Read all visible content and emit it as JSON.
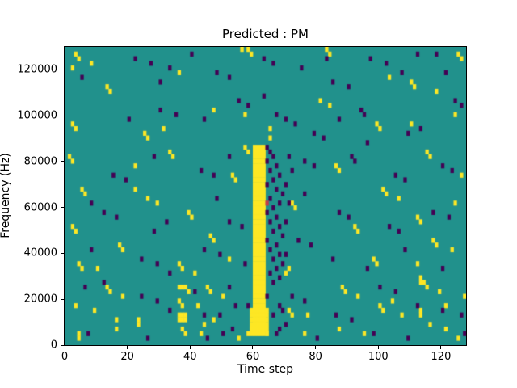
{
  "chart_data": {
    "type": "heatmap",
    "title": "Predicted : PM",
    "xlabel": "Time step",
    "ylabel": "Frequency (Hz)",
    "xlim": [
      0,
      128
    ],
    "ylim": [
      0,
      130000
    ],
    "x_ticks": [
      0,
      20,
      40,
      60,
      80,
      100,
      120
    ],
    "y_ticks": [
      0,
      20000,
      40000,
      60000,
      80000,
      100000,
      120000
    ],
    "grid": {
      "cols": 128,
      "rows": 64,
      "hz_per_row": 2031.25
    },
    "legend": "none",
    "colors": {
      "background": "#21918c",
      "yellow": "#fde725",
      "purple": "#440154",
      "accent_red": "#c23a4c"
    },
    "bands": [
      {
        "color": "yellow",
        "col_start": 60,
        "col_end": 63,
        "row_start": 3,
        "row_end": 42
      },
      {
        "color": "yellow",
        "col_start": 59,
        "col_end": 64,
        "row_start": 2,
        "row_end": 7
      }
    ],
    "yellow_cells": [
      [
        3,
        62
      ],
      [
        4,
        61
      ],
      [
        8,
        60
      ],
      [
        2,
        59
      ],
      [
        36,
        58
      ],
      [
        58,
        63
      ],
      [
        59,
        62
      ],
      [
        83,
        63
      ],
      [
        84,
        62
      ],
      [
        110,
        56
      ],
      [
        111,
        55
      ],
      [
        125,
        62
      ],
      [
        126,
        61
      ],
      [
        13,
        55
      ],
      [
        14,
        54
      ],
      [
        118,
        54
      ],
      [
        103,
        57
      ],
      [
        56,
        63
      ],
      [
        2,
        47
      ],
      [
        3,
        46
      ],
      [
        25,
        45
      ],
      [
        26,
        44
      ],
      [
        31,
        46
      ],
      [
        57,
        49
      ],
      [
        65,
        46
      ],
      [
        81,
        52
      ],
      [
        84,
        51
      ],
      [
        99,
        47
      ],
      [
        100,
        46
      ],
      [
        124,
        49
      ],
      [
        110,
        47
      ],
      [
        47,
        50
      ],
      [
        1,
        40
      ],
      [
        2,
        39
      ],
      [
        33,
        41
      ],
      [
        34,
        40
      ],
      [
        53,
        36
      ],
      [
        54,
        35
      ],
      [
        57,
        42
      ],
      [
        58,
        41
      ],
      [
        86,
        38
      ],
      [
        87,
        37
      ],
      [
        115,
        41
      ],
      [
        116,
        40
      ],
      [
        126,
        36
      ],
      [
        22,
        38
      ],
      [
        65,
        44
      ],
      [
        5,
        33
      ],
      [
        6,
        32
      ],
      [
        22,
        33
      ],
      [
        26,
        31
      ],
      [
        29,
        30
      ],
      [
        39,
        28
      ],
      [
        40,
        27
      ],
      [
        72,
        30
      ],
      [
        73,
        29
      ],
      [
        101,
        33
      ],
      [
        102,
        32
      ],
      [
        106,
        31
      ],
      [
        112,
        27
      ],
      [
        113,
        26
      ],
      [
        2,
        25
      ],
      [
        3,
        24
      ],
      [
        92,
        25
      ],
      [
        93,
        24
      ],
      [
        124,
        30
      ],
      [
        4,
        17
      ],
      [
        5,
        16
      ],
      [
        17,
        21
      ],
      [
        18,
        20
      ],
      [
        36,
        17
      ],
      [
        37,
        16
      ],
      [
        41,
        15
      ],
      [
        46,
        23
      ],
      [
        47,
        22
      ],
      [
        70,
        15
      ],
      [
        71,
        16
      ],
      [
        98,
        18
      ],
      [
        99,
        17
      ],
      [
        117,
        22
      ],
      [
        118,
        21
      ],
      [
        123,
        20
      ],
      [
        112,
        17
      ],
      [
        52,
        18
      ],
      [
        10,
        16
      ],
      [
        3,
        8
      ],
      [
        9,
        7
      ],
      [
        13,
        12
      ],
      [
        14,
        11
      ],
      [
        18,
        10
      ],
      [
        36,
        9
      ],
      [
        37,
        8
      ],
      [
        38,
        12
      ],
      [
        39,
        11
      ],
      [
        42,
        8
      ],
      [
        45,
        12
      ],
      [
        46,
        11
      ],
      [
        50,
        10
      ],
      [
        71,
        7
      ],
      [
        72,
        6
      ],
      [
        77,
        6
      ],
      [
        88,
        12
      ],
      [
        89,
        11
      ],
      [
        93,
        10
      ],
      [
        100,
        8
      ],
      [
        101,
        7
      ],
      [
        107,
        6
      ],
      [
        114,
        13
      ],
      [
        115,
        12
      ],
      [
        119,
        11
      ],
      [
        127,
        10
      ],
      [
        16,
        5
      ],
      [
        23,
        5
      ],
      [
        47,
        5
      ],
      [
        104,
        9
      ],
      [
        113,
        6
      ],
      [
        113,
        7
      ],
      [
        113,
        13
      ],
      [
        113,
        14
      ],
      [
        121,
        8
      ],
      [
        4,
        1
      ],
      [
        4,
        2
      ],
      [
        16,
        3
      ],
      [
        23,
        4
      ],
      [
        37,
        3
      ],
      [
        38,
        2
      ],
      [
        43,
        2
      ],
      [
        55,
        1
      ],
      [
        58,
        2
      ],
      [
        59,
        3
      ],
      [
        64,
        2
      ],
      [
        87,
        3
      ],
      [
        95,
        2
      ],
      [
        116,
        4
      ],
      [
        121,
        3
      ],
      [
        125,
        1
      ],
      [
        44,
        4
      ],
      [
        76,
        2
      ],
      [
        36,
        5
      ],
      [
        36,
        6
      ],
      [
        37,
        5
      ],
      [
        37,
        6
      ],
      [
        36,
        12
      ],
      [
        37,
        12
      ],
      [
        38,
        5
      ],
      [
        38,
        6
      ]
    ],
    "purple_cells": [
      [
        22,
        61
      ],
      [
        27,
        60
      ],
      [
        33,
        59
      ],
      [
        40,
        62
      ],
      [
        48,
        58
      ],
      [
        52,
        57
      ],
      [
        63,
        61
      ],
      [
        66,
        60
      ],
      [
        83,
        61
      ],
      [
        85,
        56
      ],
      [
        90,
        55
      ],
      [
        97,
        61
      ],
      [
        102,
        60
      ],
      [
        107,
        58
      ],
      [
        118,
        62
      ],
      [
        121,
        58
      ],
      [
        30,
        56
      ],
      [
        75,
        59
      ],
      [
        112,
        62
      ],
      [
        5,
        57
      ],
      [
        30,
        50
      ],
      [
        35,
        49
      ],
      [
        44,
        48
      ],
      [
        55,
        52
      ],
      [
        58,
        51
      ],
      [
        67,
        49
      ],
      [
        70,
        48
      ],
      [
        73,
        47
      ],
      [
        79,
        45
      ],
      [
        82,
        44
      ],
      [
        94,
        50
      ],
      [
        95,
        49
      ],
      [
        109,
        45
      ],
      [
        113,
        46
      ],
      [
        124,
        52
      ],
      [
        126,
        51
      ],
      [
        87,
        48
      ],
      [
        20,
        48
      ],
      [
        63,
        53
      ],
      [
        15,
        36
      ],
      [
        19,
        35
      ],
      [
        43,
        37
      ],
      [
        47,
        36
      ],
      [
        76,
        39
      ],
      [
        79,
        38
      ],
      [
        91,
        40
      ],
      [
        92,
        39
      ],
      [
        105,
        36
      ],
      [
        108,
        35
      ],
      [
        120,
        38
      ],
      [
        123,
        37
      ],
      [
        28,
        40
      ],
      [
        96,
        43
      ],
      [
        52,
        40
      ],
      [
        64,
        42
      ],
      [
        65,
        41
      ],
      [
        66,
        40
      ],
      [
        64,
        39
      ],
      [
        67,
        38
      ],
      [
        65,
        37
      ],
      [
        68,
        36
      ],
      [
        66,
        35
      ],
      [
        64,
        34
      ],
      [
        67,
        33
      ],
      [
        69,
        32
      ],
      [
        65,
        31
      ],
      [
        68,
        30
      ],
      [
        66,
        29
      ],
      [
        64,
        28
      ],
      [
        67,
        27
      ],
      [
        65,
        26
      ],
      [
        68,
        25
      ],
      [
        66,
        24
      ],
      [
        69,
        23
      ],
      [
        64,
        22
      ],
      [
        67,
        21
      ],
      [
        65,
        20
      ],
      [
        68,
        19
      ],
      [
        66,
        18
      ],
      [
        69,
        17
      ],
      [
        67,
        16
      ],
      [
        65,
        15
      ],
      [
        68,
        14
      ],
      [
        66,
        13
      ],
      [
        70,
        34
      ],
      [
        70,
        26
      ],
      [
        71,
        30
      ],
      [
        70,
        19
      ],
      [
        71,
        40
      ],
      [
        72,
        37
      ],
      [
        12,
        28
      ],
      [
        16,
        27
      ],
      [
        28,
        24
      ],
      [
        32,
        26
      ],
      [
        52,
        26
      ],
      [
        56,
        25
      ],
      [
        76,
        32
      ],
      [
        87,
        28
      ],
      [
        90,
        27
      ],
      [
        103,
        25
      ],
      [
        106,
        24
      ],
      [
        117,
        28
      ],
      [
        122,
        27
      ],
      [
        8,
        30
      ],
      [
        48,
        31
      ],
      [
        8,
        20
      ],
      [
        24,
        18
      ],
      [
        29,
        17
      ],
      [
        44,
        20
      ],
      [
        49,
        19
      ],
      [
        74,
        22
      ],
      [
        78,
        21
      ],
      [
        85,
        18
      ],
      [
        96,
        16
      ],
      [
        108,
        20
      ],
      [
        120,
        16
      ],
      [
        57,
        17
      ],
      [
        33,
        15
      ],
      [
        6,
        12
      ],
      [
        12,
        13
      ],
      [
        24,
        10
      ],
      [
        29,
        9
      ],
      [
        44,
        6
      ],
      [
        49,
        6
      ],
      [
        54,
        8
      ],
      [
        58,
        8
      ],
      [
        72,
        10
      ],
      [
        76,
        9
      ],
      [
        86,
        6
      ],
      [
        91,
        5
      ],
      [
        100,
        12
      ],
      [
        105,
        11
      ],
      [
        112,
        8
      ],
      [
        120,
        7
      ],
      [
        126,
        6
      ],
      [
        41,
        11
      ],
      [
        52,
        12
      ],
      [
        33,
        7
      ],
      [
        68,
        8
      ],
      [
        69,
        7
      ],
      [
        66,
        6
      ],
      [
        64,
        10
      ],
      [
        7,
        2
      ],
      [
        26,
        1
      ],
      [
        50,
        2
      ],
      [
        53,
        3
      ],
      [
        67,
        2
      ],
      [
        68,
        3
      ],
      [
        80,
        1
      ],
      [
        98,
        2
      ],
      [
        109,
        1
      ],
      [
        127,
        2
      ],
      [
        45,
        1
      ],
      [
        70,
        4
      ]
    ],
    "accent_cells": [
      [
        64,
        30
      ]
    ]
  }
}
